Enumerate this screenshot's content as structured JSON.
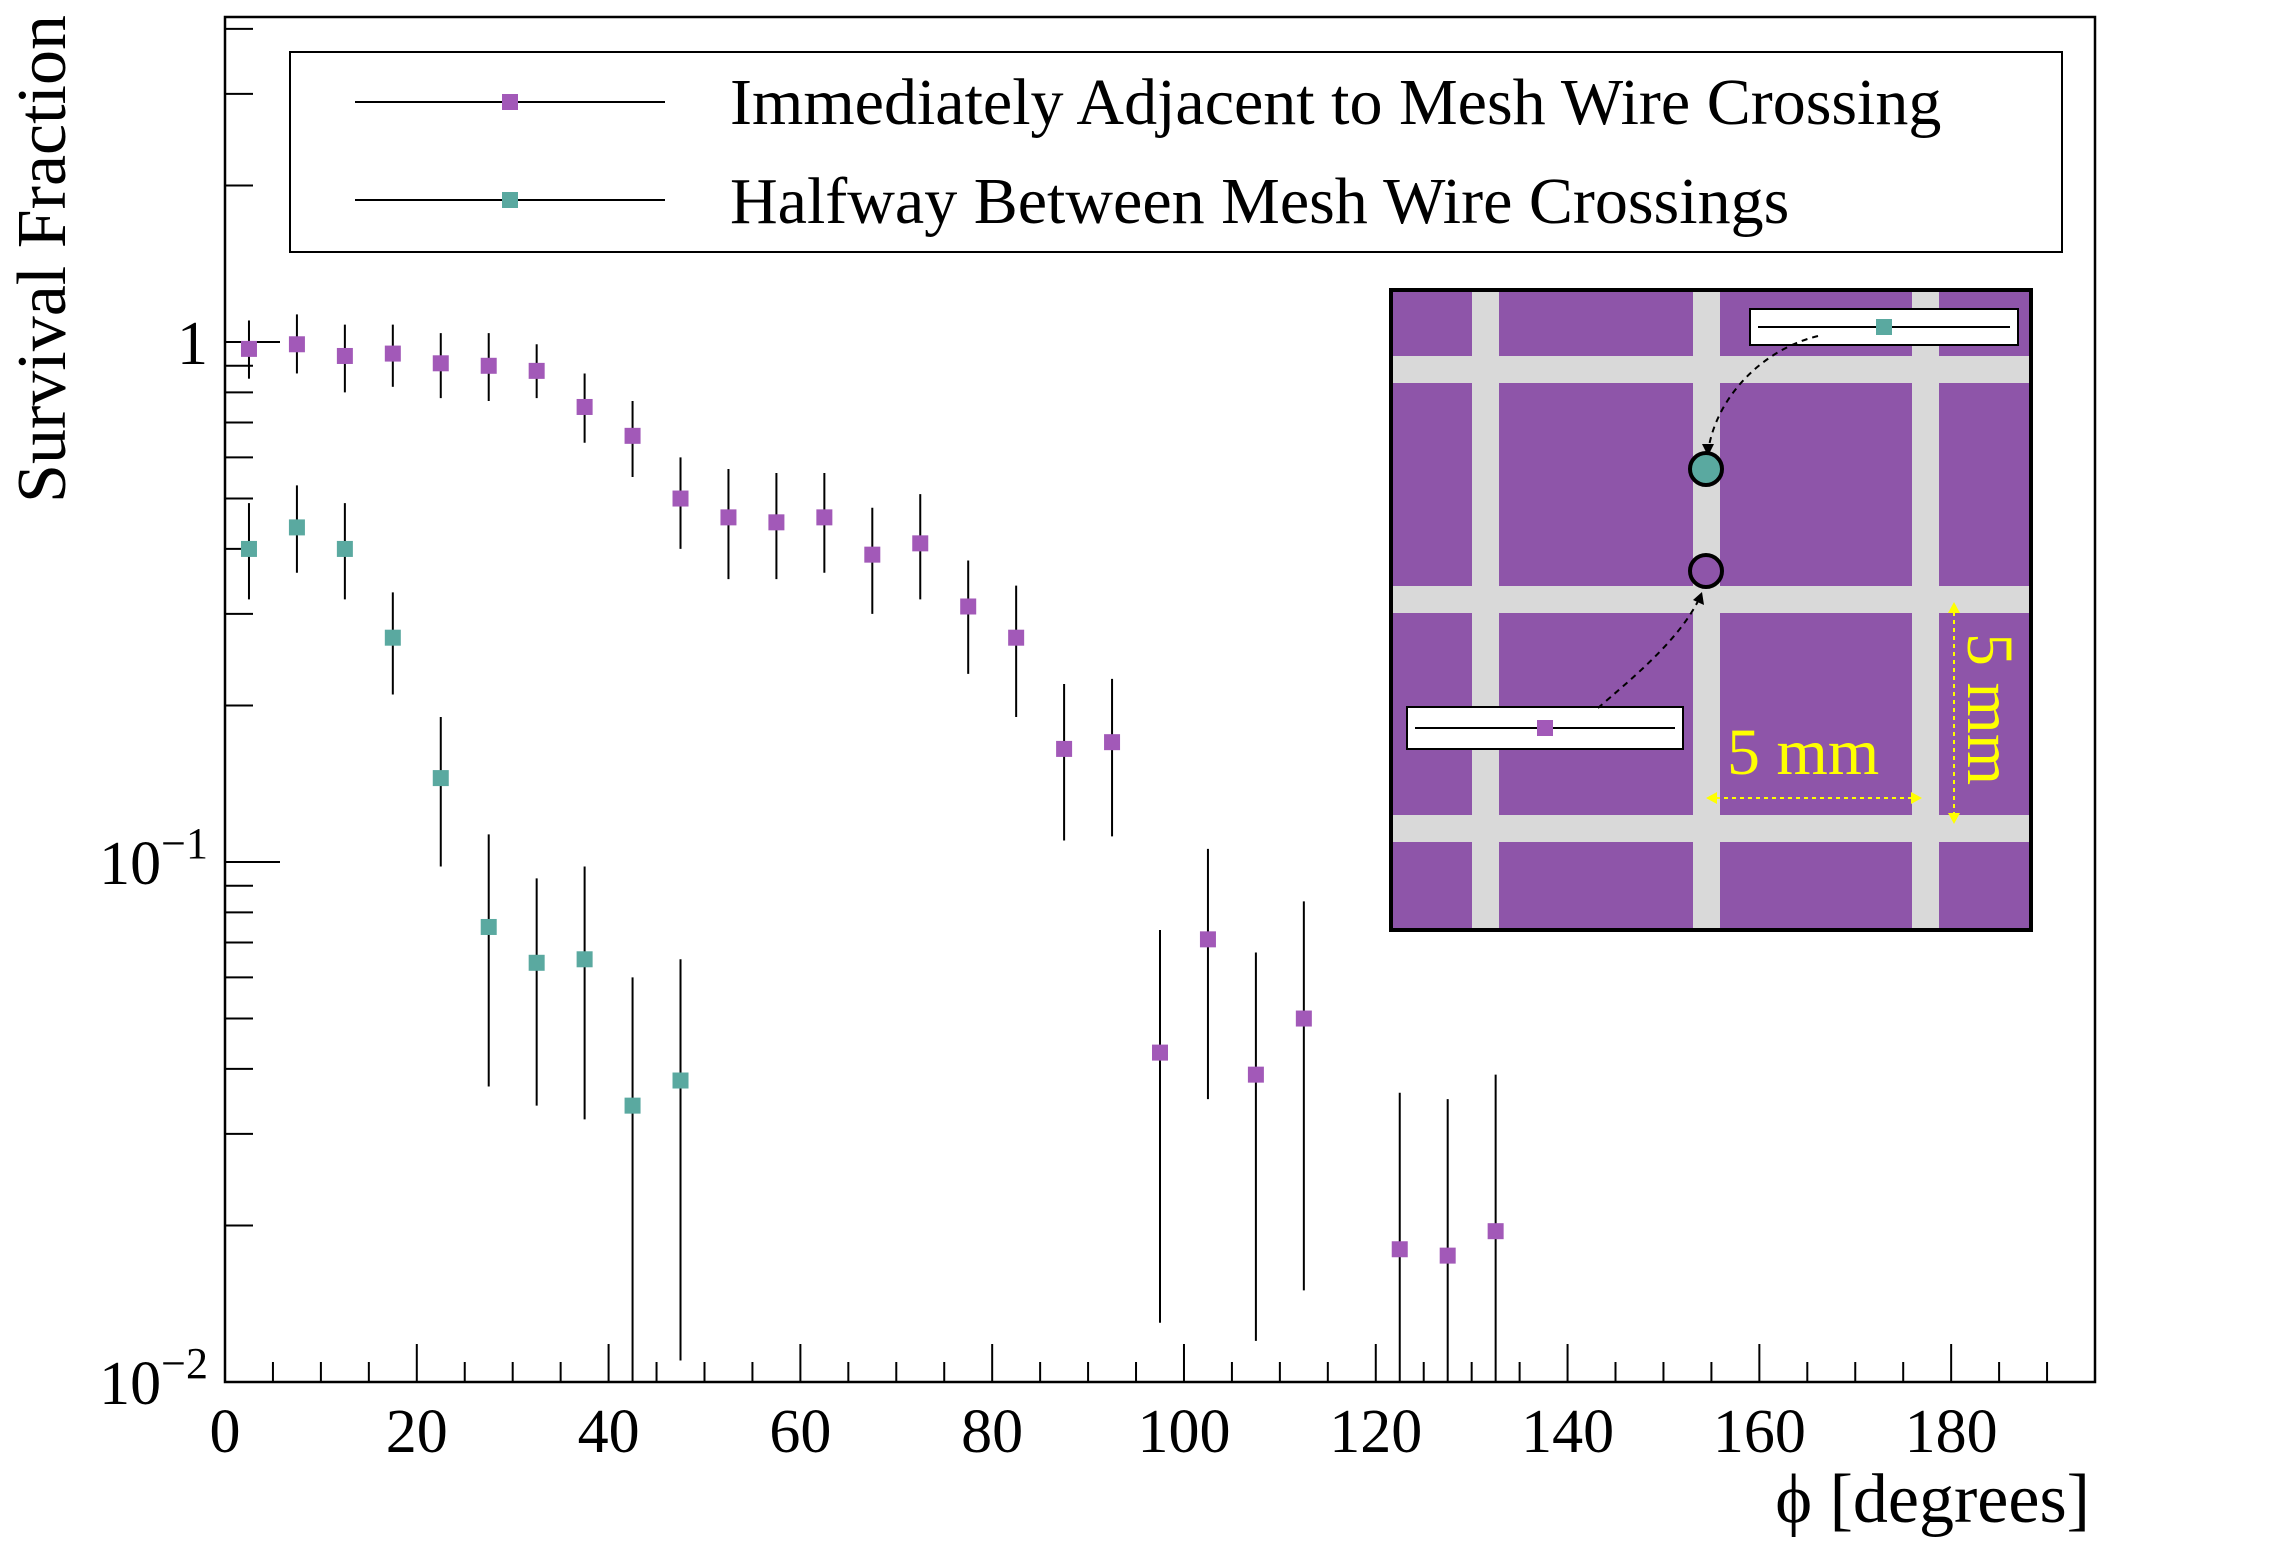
{
  "chart_data": {
    "type": "scatter",
    "title": "",
    "xlabel": "ϕ [degrees]",
    "ylabel": "Survival Fraction",
    "xlim": [
      0,
      195
    ],
    "ylim": [
      0.01,
      4
    ],
    "yscale": "log",
    "x_ticks": [
      0,
      20,
      40,
      60,
      80,
      100,
      120,
      140,
      160,
      180
    ],
    "x_tick_labels": [
      "0",
      "20",
      "40",
      "60",
      "80",
      "100",
      "120",
      "140",
      "160",
      "180"
    ],
    "y_ticks": [
      {
        "value": 1,
        "mantissa": "1",
        "exponent": ""
      },
      {
        "value": 0.1,
        "mantissa": "10",
        "exponent": "−1"
      },
      {
        "value": 0.01,
        "mantissa": "10",
        "exponent": "−2"
      }
    ],
    "grid": false,
    "legend_position": "top",
    "series": [
      {
        "name": "Immediately Adjacent to Mesh Wire Crossing",
        "color": "#a259b8",
        "points": [
          {
            "x": 2.5,
            "y": 0.97,
            "lo": 0.85,
            "hi": 1.1
          },
          {
            "x": 7.5,
            "y": 0.99,
            "lo": 0.87,
            "hi": 1.13
          },
          {
            "x": 12.5,
            "y": 0.94,
            "lo": 0.8,
            "hi": 1.08
          },
          {
            "x": 17.5,
            "y": 0.95,
            "lo": 0.82,
            "hi": 1.08
          },
          {
            "x": 22.5,
            "y": 0.91,
            "lo": 0.78,
            "hi": 1.04
          },
          {
            "x": 27.5,
            "y": 0.9,
            "lo": 0.77,
            "hi": 1.04
          },
          {
            "x": 32.5,
            "y": 0.88,
            "lo": 0.78,
            "hi": 0.99
          },
          {
            "x": 37.5,
            "y": 0.75,
            "lo": 0.64,
            "hi": 0.87
          },
          {
            "x": 42.5,
            "y": 0.66,
            "lo": 0.55,
            "hi": 0.77
          },
          {
            "x": 47.5,
            "y": 0.5,
            "lo": 0.4,
            "hi": 0.6
          },
          {
            "x": 52.5,
            "y": 0.46,
            "lo": 0.35,
            "hi": 0.57
          },
          {
            "x": 57.5,
            "y": 0.45,
            "lo": 0.35,
            "hi": 0.56
          },
          {
            "x": 62.5,
            "y": 0.46,
            "lo": 0.36,
            "hi": 0.56
          },
          {
            "x": 67.5,
            "y": 0.39,
            "lo": 0.3,
            "hi": 0.48
          },
          {
            "x": 72.5,
            "y": 0.41,
            "lo": 0.32,
            "hi": 0.51
          },
          {
            "x": 77.5,
            "y": 0.31,
            "lo": 0.23,
            "hi": 0.38
          },
          {
            "x": 82.5,
            "y": 0.27,
            "lo": 0.19,
            "hi": 0.34
          },
          {
            "x": 87.5,
            "y": 0.165,
            "lo": 0.11,
            "hi": 0.22
          },
          {
            "x": 92.5,
            "y": 0.17,
            "lo": 0.112,
            "hi": 0.225
          },
          {
            "x": 97.5,
            "y": 0.043,
            "lo": 0.013,
            "hi": 0.074
          },
          {
            "x": 102.5,
            "y": 0.071,
            "lo": 0.035,
            "hi": 0.106
          },
          {
            "x": 107.5,
            "y": 0.039,
            "lo": 0.012,
            "hi": 0.067
          },
          {
            "x": 112.5,
            "y": 0.05,
            "lo": 0.015,
            "hi": 0.084
          },
          {
            "x": 122.5,
            "y": 0.018,
            "lo": 0.01,
            "hi": 0.036
          },
          {
            "x": 127.5,
            "y": 0.0175,
            "lo": 0.01,
            "hi": 0.035
          },
          {
            "x": 132.5,
            "y": 0.0195,
            "lo": 0.01,
            "hi": 0.039
          }
        ]
      },
      {
        "name": "Halfway Between Mesh Wire Crossings",
        "color": "#5aa9a0",
        "points": [
          {
            "x": 2.5,
            "y": 0.4,
            "lo": 0.32,
            "hi": 0.49
          },
          {
            "x": 7.5,
            "y": 0.44,
            "lo": 0.36,
            "hi": 0.53
          },
          {
            "x": 12.5,
            "y": 0.4,
            "lo": 0.32,
            "hi": 0.49
          },
          {
            "x": 17.5,
            "y": 0.27,
            "lo": 0.21,
            "hi": 0.33
          },
          {
            "x": 22.5,
            "y": 0.145,
            "lo": 0.098,
            "hi": 0.19
          },
          {
            "x": 27.5,
            "y": 0.075,
            "lo": 0.037,
            "hi": 0.113
          },
          {
            "x": 32.5,
            "y": 0.064,
            "lo": 0.034,
            "hi": 0.093
          },
          {
            "x": 37.5,
            "y": 0.065,
            "lo": 0.032,
            "hi": 0.098
          },
          {
            "x": 42.5,
            "y": 0.034,
            "lo": 0.01,
            "hi": 0.06
          },
          {
            "x": 47.5,
            "y": 0.038,
            "lo": 0.011,
            "hi": 0.065
          }
        ]
      }
    ],
    "inset": {
      "description_label": "5 mm",
      "vertical_label": "5 mm",
      "background_color": "#8e55a9",
      "wire_color": "#d9d9d9",
      "annotation_color": "#ffff00"
    }
  }
}
